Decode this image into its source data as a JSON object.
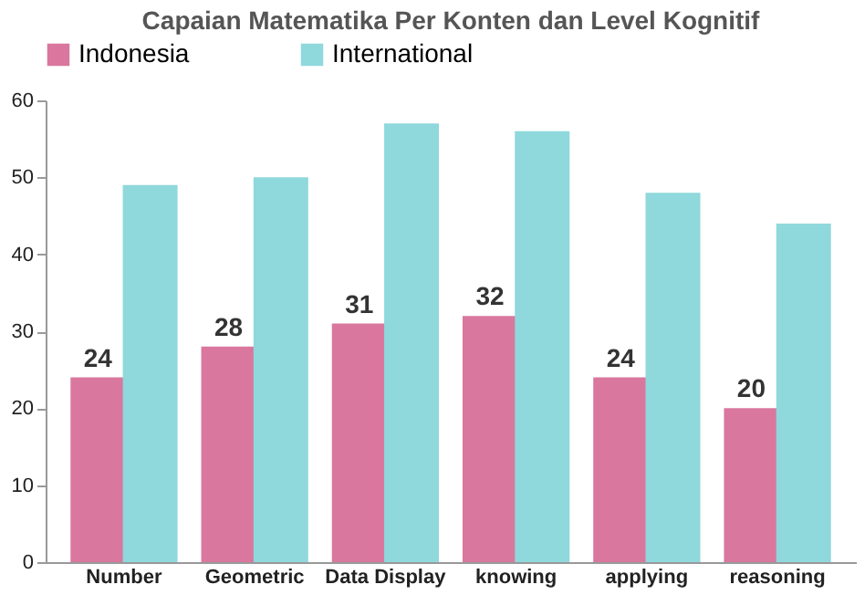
{
  "chart_data": {
    "type": "bar",
    "title": "Capaian Matematika Per Konten dan Level Kognitif",
    "categories": [
      "Number",
      "Geometric",
      "Data Display",
      "knowing",
      "applying",
      "reasoning"
    ],
    "series": [
      {
        "name": "Indonesia",
        "color": "#d9779e",
        "values": [
          24,
          28,
          31,
          32,
          24,
          20
        ],
        "value_labels": [
          "24",
          "28",
          "31",
          "32",
          "24",
          "20"
        ]
      },
      {
        "name": "International",
        "color": "#8fd8dc",
        "values": [
          49,
          50,
          57,
          56,
          48,
          44
        ]
      }
    ],
    "ylim": [
      0,
      60
    ],
    "yticks": [
      0,
      10,
      20,
      30,
      40,
      50,
      60
    ],
    "grid": false,
    "legend": "top"
  }
}
